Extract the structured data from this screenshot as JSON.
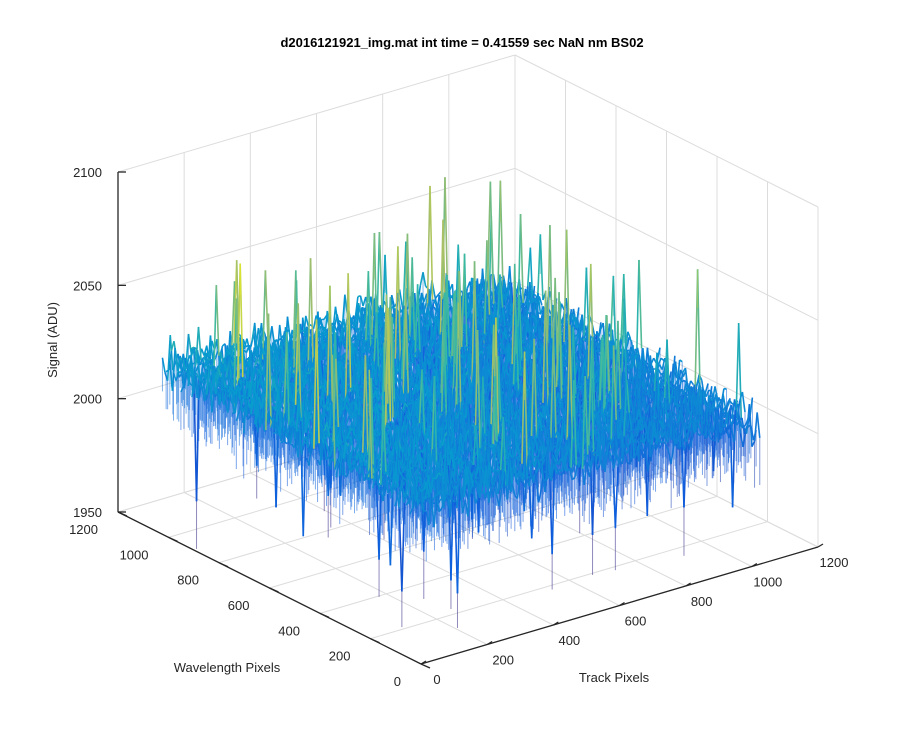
{
  "colors": {
    "background": "#ffffff",
    "axis": "#262626",
    "grid": "#dcdcdc",
    "colormap": "parula"
  },
  "chart_data": {
    "type": "surface",
    "view": "3d",
    "title": "d2016121921_img.mat int time = 0.41559 sec  NaN nm BS02",
    "xlabel": "Track Pixels",
    "ylabel": "Wavelength Pixels",
    "zlabel": "Signal (ADU)",
    "xlim": [
      0,
      1200
    ],
    "ylim": [
      0,
      1200
    ],
    "zlim": [
      1950,
      2100
    ],
    "x_ticks": [
      "0",
      "200",
      "400",
      "600",
      "800",
      "1000",
      "1200"
    ],
    "y_ticks": [
      "0",
      "200",
      "400",
      "600",
      "800",
      "1000",
      "1200"
    ],
    "z_ticks": [
      "1950",
      "2000",
      "2050",
      "2100"
    ],
    "grid": true,
    "surface_summary": {
      "x_extent": [
        0,
        1024
      ],
      "y_extent": [
        0,
        1024
      ],
      "mean_level": 2020,
      "noise_amplitude": 20
    }
  }
}
